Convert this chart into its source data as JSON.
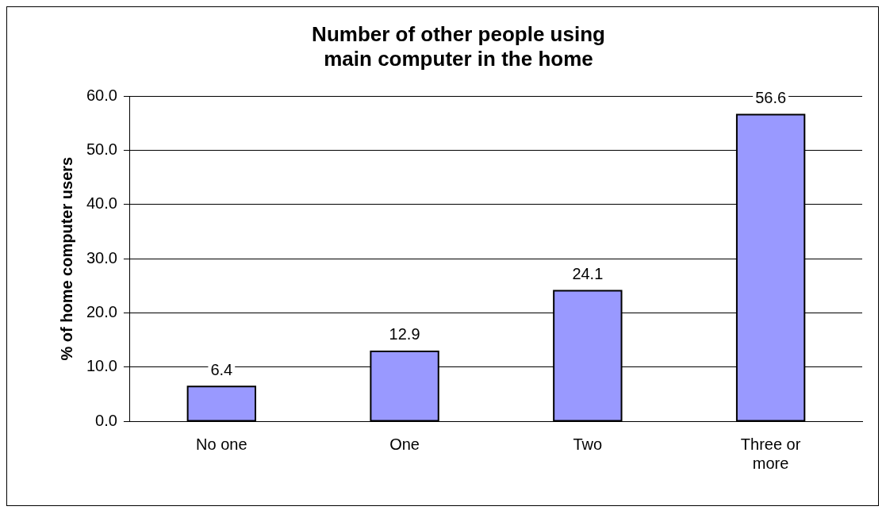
{
  "chart_data": {
    "type": "bar",
    "title": "Number of other people using main computer in the home",
    "ylabel": "% of home computer users",
    "categories": [
      "No one",
      "One",
      "Two",
      "Three or more"
    ],
    "values": [
      6.4,
      12.9,
      24.1,
      56.6
    ],
    "color": "#9999ff",
    "ylim": [
      0,
      60
    ],
    "yticks": [
      {
        "value": 0,
        "label": "0.0"
      },
      {
        "value": 10,
        "label": "10.0"
      },
      {
        "value": 20,
        "label": "20.0"
      },
      {
        "value": 30,
        "label": "30.0"
      },
      {
        "value": 40,
        "label": "40.0"
      },
      {
        "value": 50,
        "label": "50.0"
      },
      {
        "value": 60,
        "label": "60.0"
      }
    ],
    "grid": "y",
    "data_labels": true
  }
}
